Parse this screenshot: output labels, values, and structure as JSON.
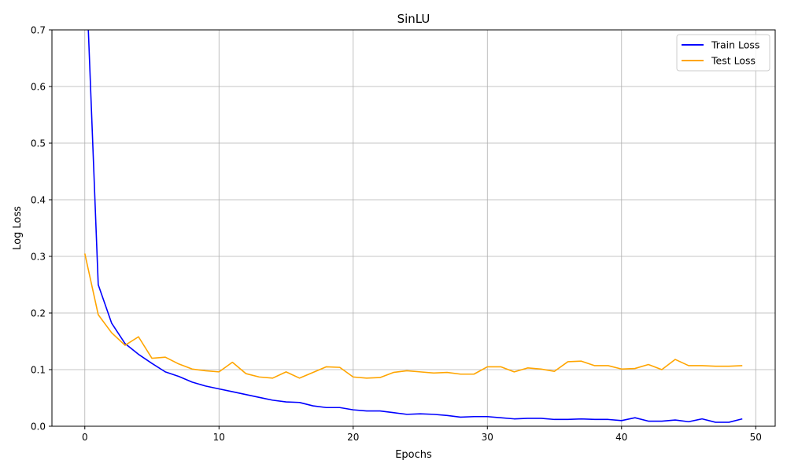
{
  "chart_data": {
    "type": "line",
    "title": "SinLU",
    "xlabel": "Epochs",
    "ylabel": "Log Loss",
    "xlim": [
      -2.45,
      51.45
    ],
    "ylim": [
      0,
      0.7
    ],
    "xticks": [
      0,
      10,
      20,
      30,
      40,
      50
    ],
    "yticks": [
      0.0,
      0.1,
      0.2,
      0.3,
      0.4,
      0.5,
      0.6,
      0.7
    ],
    "grid": true,
    "legend_position": "top-right",
    "x": [
      0,
      1,
      2,
      3,
      4,
      5,
      6,
      7,
      8,
      9,
      10,
      11,
      12,
      13,
      14,
      15,
      16,
      17,
      18,
      19,
      20,
      21,
      22,
      23,
      24,
      25,
      26,
      27,
      28,
      29,
      30,
      31,
      32,
      33,
      34,
      35,
      36,
      37,
      38,
      39,
      40,
      41,
      42,
      43,
      44,
      45,
      46,
      47,
      48,
      49
    ],
    "series": [
      {
        "name": "Train Loss",
        "color": "#0000ff",
        "values": [
          0.86,
          0.25,
          0.182,
          0.146,
          0.127,
          0.111,
          0.096,
          0.088,
          0.078,
          0.071,
          0.066,
          0.061,
          0.056,
          0.051,
          0.046,
          0.043,
          0.042,
          0.036,
          0.033,
          0.033,
          0.029,
          0.027,
          0.027,
          0.024,
          0.021,
          0.022,
          0.021,
          0.019,
          0.016,
          0.017,
          0.017,
          0.015,
          0.013,
          0.014,
          0.014,
          0.012,
          0.012,
          0.013,
          0.012,
          0.012,
          0.01,
          0.015,
          0.009,
          0.009,
          0.011,
          0.008,
          0.013,
          0.007,
          0.007,
          0.013
        ]
      },
      {
        "name": "Test Loss",
        "color": "#ffa500",
        "values": [
          0.305,
          0.197,
          0.165,
          0.143,
          0.158,
          0.12,
          0.122,
          0.11,
          0.101,
          0.098,
          0.096,
          0.113,
          0.093,
          0.087,
          0.085,
          0.096,
          0.085,
          0.095,
          0.105,
          0.104,
          0.087,
          0.085,
          0.086,
          0.095,
          0.098,
          0.096,
          0.094,
          0.095,
          0.092,
          0.092,
          0.105,
          0.105,
          0.096,
          0.103,
          0.101,
          0.097,
          0.114,
          0.115,
          0.107,
          0.107,
          0.101,
          0.102,
          0.109,
          0.1,
          0.118,
          0.107,
          0.107,
          0.106,
          0.106,
          0.107
        ]
      }
    ]
  }
}
